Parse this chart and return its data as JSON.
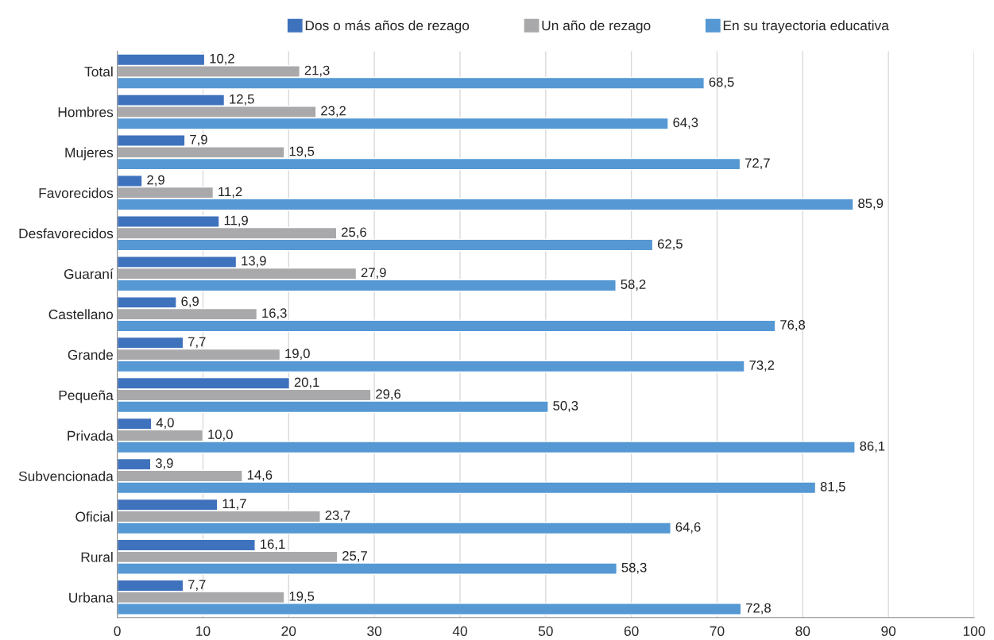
{
  "chart_data": {
    "type": "bar",
    "orientation": "horizontal",
    "categories": [
      "Total",
      "Hombres",
      "Mujeres",
      "Favorecidos",
      "Desfavorecidos",
      "Guaraní",
      "Castellano",
      "Grande",
      "Pequeña",
      "Privada",
      "Subvencionada",
      "Oficial",
      "Rural",
      "Urbana"
    ],
    "series": [
      {
        "name": "Dos o más años de rezago",
        "color": "#3f72bd",
        "values": [
          10.2,
          12.5,
          7.9,
          2.9,
          11.9,
          13.9,
          6.9,
          7.7,
          20.1,
          4.0,
          3.9,
          11.7,
          16.1,
          7.7
        ],
        "value_labels": [
          "10,2",
          "12,5",
          "7,9",
          "2,9",
          "11,9",
          "13,9",
          "6,9",
          "7,7",
          "20,1",
          "4,0",
          "3,9",
          "11,7",
          "16,1",
          "7,7"
        ]
      },
      {
        "name": "Un año de rezago",
        "color": "#a9a9ab",
        "values": [
          21.3,
          23.2,
          19.5,
          11.2,
          25.6,
          27.9,
          16.3,
          19.0,
          29.6,
          10.0,
          14.6,
          23.7,
          25.7,
          19.5
        ],
        "value_labels": [
          "21,3",
          "23,2",
          "19,5",
          "11,2",
          "25,6",
          "27,9",
          "16,3",
          "19,0",
          "29,6",
          "10,0",
          "14,6",
          "23,7",
          "25,7",
          "19,5"
        ]
      },
      {
        "name": "En su trayectoria educativa",
        "color": "#5598d3",
        "values": [
          68.5,
          64.3,
          72.7,
          85.9,
          62.5,
          58.2,
          76.8,
          73.2,
          50.3,
          86.1,
          81.5,
          64.6,
          58.3,
          72.8
        ],
        "value_labels": [
          "68,5",
          "64,3",
          "72,7",
          "85,9",
          "62,5",
          "58,2",
          "76,8",
          "73,2",
          "50,3",
          "86,1",
          "81,5",
          "64,6",
          "58,3",
          "72,8"
        ]
      }
    ],
    "xlim": [
      0,
      100
    ],
    "xticks": [
      0,
      10,
      20,
      30,
      40,
      50,
      60,
      70,
      80,
      90,
      100
    ],
    "grid": "x",
    "legend": "top"
  }
}
